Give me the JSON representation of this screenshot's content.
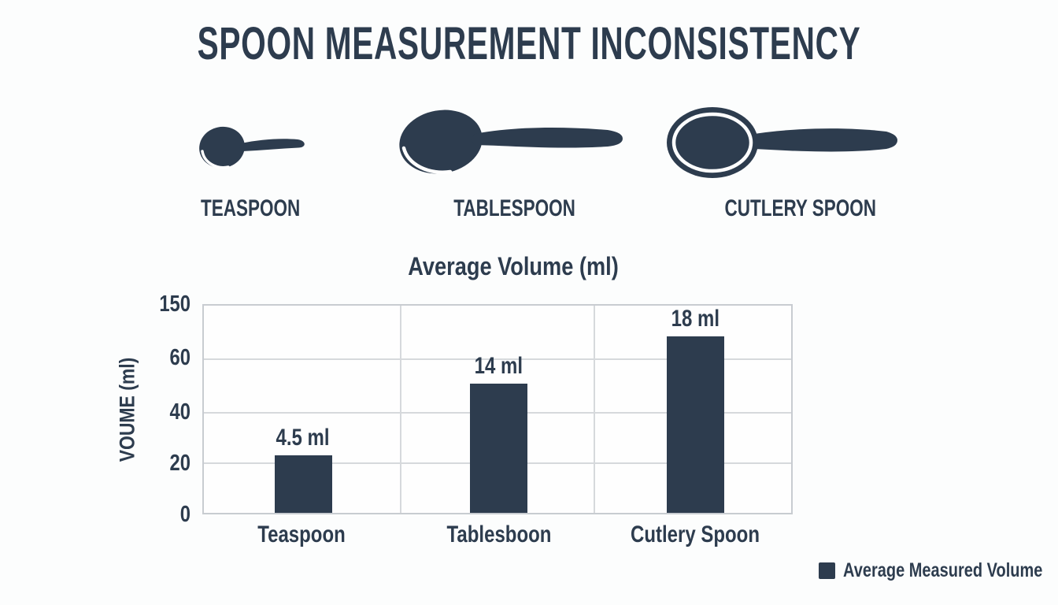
{
  "page": {
    "title": "SPOON MEASUREMENT INCONSISTENCY"
  },
  "spoons": {
    "items": [
      {
        "label": "TEASPOON",
        "icon": "teaspoon-icon"
      },
      {
        "label": "TABLESPOON",
        "icon": "tablespoon-icon"
      },
      {
        "label": "CUTLERY SPOON",
        "icon": "cutlery-spoon-icon"
      }
    ]
  },
  "chart_data": {
    "type": "bar",
    "title": "Average Volume (ml)",
    "ylabel": "VOUME (ml)",
    "categories": [
      "Teaspoon",
      "Tablesboon",
      "Cutlery Spoon"
    ],
    "values": [
      4.5,
      14,
      18
    ],
    "bar_labels": [
      "4.5 ml",
      "14 ml",
      "18 ml"
    ],
    "bar_display_heights_pct": [
      27.7,
      62.2,
      87.6
    ],
    "ytick_labels": [
      "150",
      "60",
      "40",
      "20",
      "0"
    ],
    "grid": true,
    "legend_position": "bottom-right",
    "bar_color": "#2d3c4e",
    "legend": {
      "label": "Average Measured Volume",
      "color": "#2d3c4e"
    }
  },
  "colors": {
    "ink": "#2d3c4e",
    "background": "#fcfdfd",
    "plot_border": "#c8ccd1",
    "gridline": "#d6d9dc"
  }
}
